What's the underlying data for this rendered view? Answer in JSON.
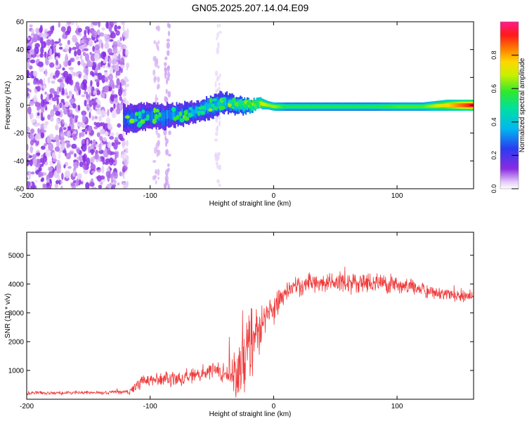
{
  "title": "GN05.2025.207.14.04.E09",
  "chart_data": [
    {
      "type": "heatmap",
      "xlabel": "Height of straight line (km)",
      "ylabel": "Frequency (Hz)",
      "xlim": [
        -200,
        162
      ],
      "ylim": [
        -60,
        60
      ],
      "x_ticks": [
        -200,
        -100,
        0,
        100
      ],
      "x_tick_labels": [
        "-200",
        "-100",
        "0",
        "100"
      ],
      "y_ticks": [
        -60,
        -40,
        -20,
        0,
        20,
        40,
        60
      ],
      "y_tick_labels": [
        "-60",
        "-40",
        "-20",
        "0",
        "20",
        "40",
        "60"
      ],
      "grid": false,
      "colorbar": {
        "label": "Normalized spectral amplitude",
        "range": [
          0,
          1
        ],
        "ticks": [
          0.0,
          0.2,
          0.4,
          0.6,
          0.8
        ],
        "tick_labels": [
          "0.0",
          "0.2",
          "0.4",
          "0.6",
          "0.8"
        ],
        "colormap": "rainbow (violet → blue → cyan → green → yellow → orange → red → magenta)"
      },
      "noise_region": {
        "x_range": [
          -200,
          -120
        ],
        "freq_range": [
          -60,
          60
        ],
        "amplitude": 0.08
      },
      "sparse_columns": [
        {
          "x_range": [
            -122,
            -118
          ],
          "amplitude": 0.04
        },
        {
          "x_range": [
            -97,
            -93
          ],
          "amplitude": 0.05
        },
        {
          "x_range": [
            -88,
            -84
          ],
          "amplitude": 0.06
        },
        {
          "x_range": [
            -47,
            -43
          ],
          "amplitude": 0.03
        }
      ],
      "signal_track": {
        "x": [
          -122,
          -110,
          -100,
          -90,
          -80,
          -70,
          -60,
          -55,
          -50,
          -45,
          -40,
          -35,
          -30,
          -25,
          -20,
          -15,
          -10,
          -5,
          0,
          10,
          20,
          40,
          60,
          80,
          100,
          120,
          140,
          162
        ],
        "frequency": [
          -10,
          -9,
          -8,
          -8,
          -7,
          -6,
          -4,
          -2,
          -1,
          1,
          2,
          1,
          0,
          0,
          0,
          0,
          1,
          0,
          -1,
          -1,
          -1,
          -1,
          -1,
          -1,
          -1,
          -1,
          0,
          0
        ],
        "bandwidth": [
          10,
          10,
          9,
          9,
          8,
          8,
          7,
          8,
          8,
          8,
          7,
          7,
          6,
          6,
          5,
          4,
          4,
          3,
          3,
          3,
          3,
          3,
          3,
          3,
          3,
          3,
          4,
          4
        ],
        "amplitude": [
          0.28,
          0.3,
          0.3,
          0.32,
          0.32,
          0.33,
          0.34,
          0.36,
          0.38,
          0.38,
          0.38,
          0.4,
          0.45,
          0.5,
          0.6,
          0.65,
          0.7,
          0.65,
          0.65,
          0.55,
          0.55,
          0.55,
          0.55,
          0.55,
          0.6,
          0.6,
          0.75,
          0.95
        ]
      }
    },
    {
      "type": "line",
      "xlabel": "Height of straight line (km)",
      "ylabel": "SNR (10 * v/v)",
      "xlim": [
        -200,
        162
      ],
      "ylim": [
        0,
        5800
      ],
      "x_ticks": [
        -200,
        -100,
        0,
        100
      ],
      "x_tick_labels": [
        "-200",
        "-100",
        "0",
        "100"
      ],
      "y_ticks": [
        1000,
        2000,
        3000,
        4000,
        5000
      ],
      "y_tick_labels": [
        "1000",
        "2000",
        "3000",
        "4000",
        "5000"
      ],
      "grid": false,
      "color": "#ef3b3b",
      "series": [
        {
          "x": [
            -200,
            -190,
            -180,
            -170,
            -160,
            -150,
            -140,
            -130,
            -120,
            -115,
            -110,
            -105,
            -100,
            -95,
            -90,
            -85,
            -80,
            -75,
            -70,
            -65,
            -60,
            -55,
            -50,
            -45,
            -40,
            -35,
            -30,
            -25,
            -22,
            -20,
            -18,
            -15,
            -12,
            -10,
            -8,
            -5,
            -2,
            0,
            2,
            5,
            8,
            10,
            15,
            20,
            25,
            30,
            35,
            40,
            45,
            50,
            55,
            60,
            65,
            70,
            75,
            80,
            85,
            90,
            95,
            100,
            105,
            110,
            115,
            120,
            125,
            130,
            135,
            140,
            145,
            150,
            155,
            162
          ],
          "y": [
            200,
            230,
            210,
            220,
            240,
            230,
            220,
            240,
            260,
            300,
            520,
            700,
            650,
            700,
            750,
            700,
            650,
            720,
            800,
            850,
            900,
            950,
            1000,
            1000,
            900,
            850,
            900,
            1200,
            1500,
            1800,
            2000,
            1900,
            2200,
            2500,
            2800,
            2900,
            3000,
            3100,
            3300,
            3500,
            3600,
            3700,
            3850,
            3950,
            4000,
            4050,
            4000,
            4050,
            4100,
            4100,
            4050,
            4000,
            4050,
            4000,
            4050,
            4000,
            4050,
            4000,
            3950,
            4000,
            3900,
            3950,
            3850,
            3800,
            3750,
            3700,
            3650,
            3650,
            3600,
            3650,
            3600,
            3650
          ],
          "noise": [
            60,
            60,
            60,
            60,
            60,
            60,
            60,
            70,
            80,
            150,
            250,
            260,
            250,
            250,
            250,
            260,
            260,
            260,
            260,
            270,
            280,
            290,
            300,
            320,
            380,
            600,
            900,
            1100,
            1300,
            1300,
            1200,
            1200,
            1100,
            900,
            800,
            700,
            600,
            500,
            450,
            400,
            350,
            350,
            350,
            350,
            350,
            350,
            350,
            350,
            350,
            350,
            350,
            350,
            350,
            350,
            350,
            350,
            350,
            350,
            350,
            320,
            300,
            300,
            280,
            260,
            260,
            250,
            250,
            250,
            240,
            240,
            240,
            240
          ]
        }
      ]
    }
  ]
}
